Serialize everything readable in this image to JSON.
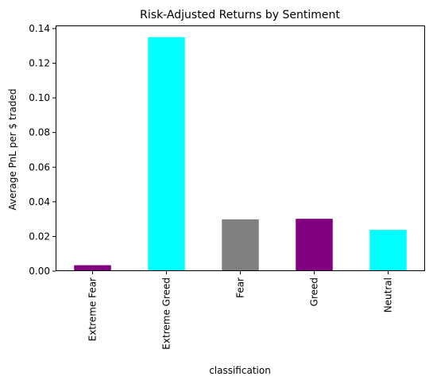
{
  "chart_data": {
    "type": "bar",
    "title": "Risk-Adjusted Returns by Sentiment",
    "xlabel": "classification",
    "ylabel": "Average PnL per $ traded",
    "categories": [
      "Extreme Fear",
      "Extreme Greed",
      "Fear",
      "Greed",
      "Neutral"
    ],
    "values": [
      0.0034,
      0.135,
      0.0299,
      0.0302,
      0.0238
    ],
    "bar_colors": [
      "#800080",
      "#00ffff",
      "#808080",
      "#800080",
      "#00ffff"
    ],
    "ylim": [
      0,
      0.1418
    ],
    "yticks": [
      "0.00",
      "0.02",
      "0.04",
      "0.06",
      "0.08",
      "0.10",
      "0.12",
      "0.14"
    ],
    "ytick_values": [
      0,
      0.02,
      0.04,
      0.06,
      0.08,
      0.1,
      0.12,
      0.14
    ],
    "grid": false,
    "legend": "none"
  }
}
